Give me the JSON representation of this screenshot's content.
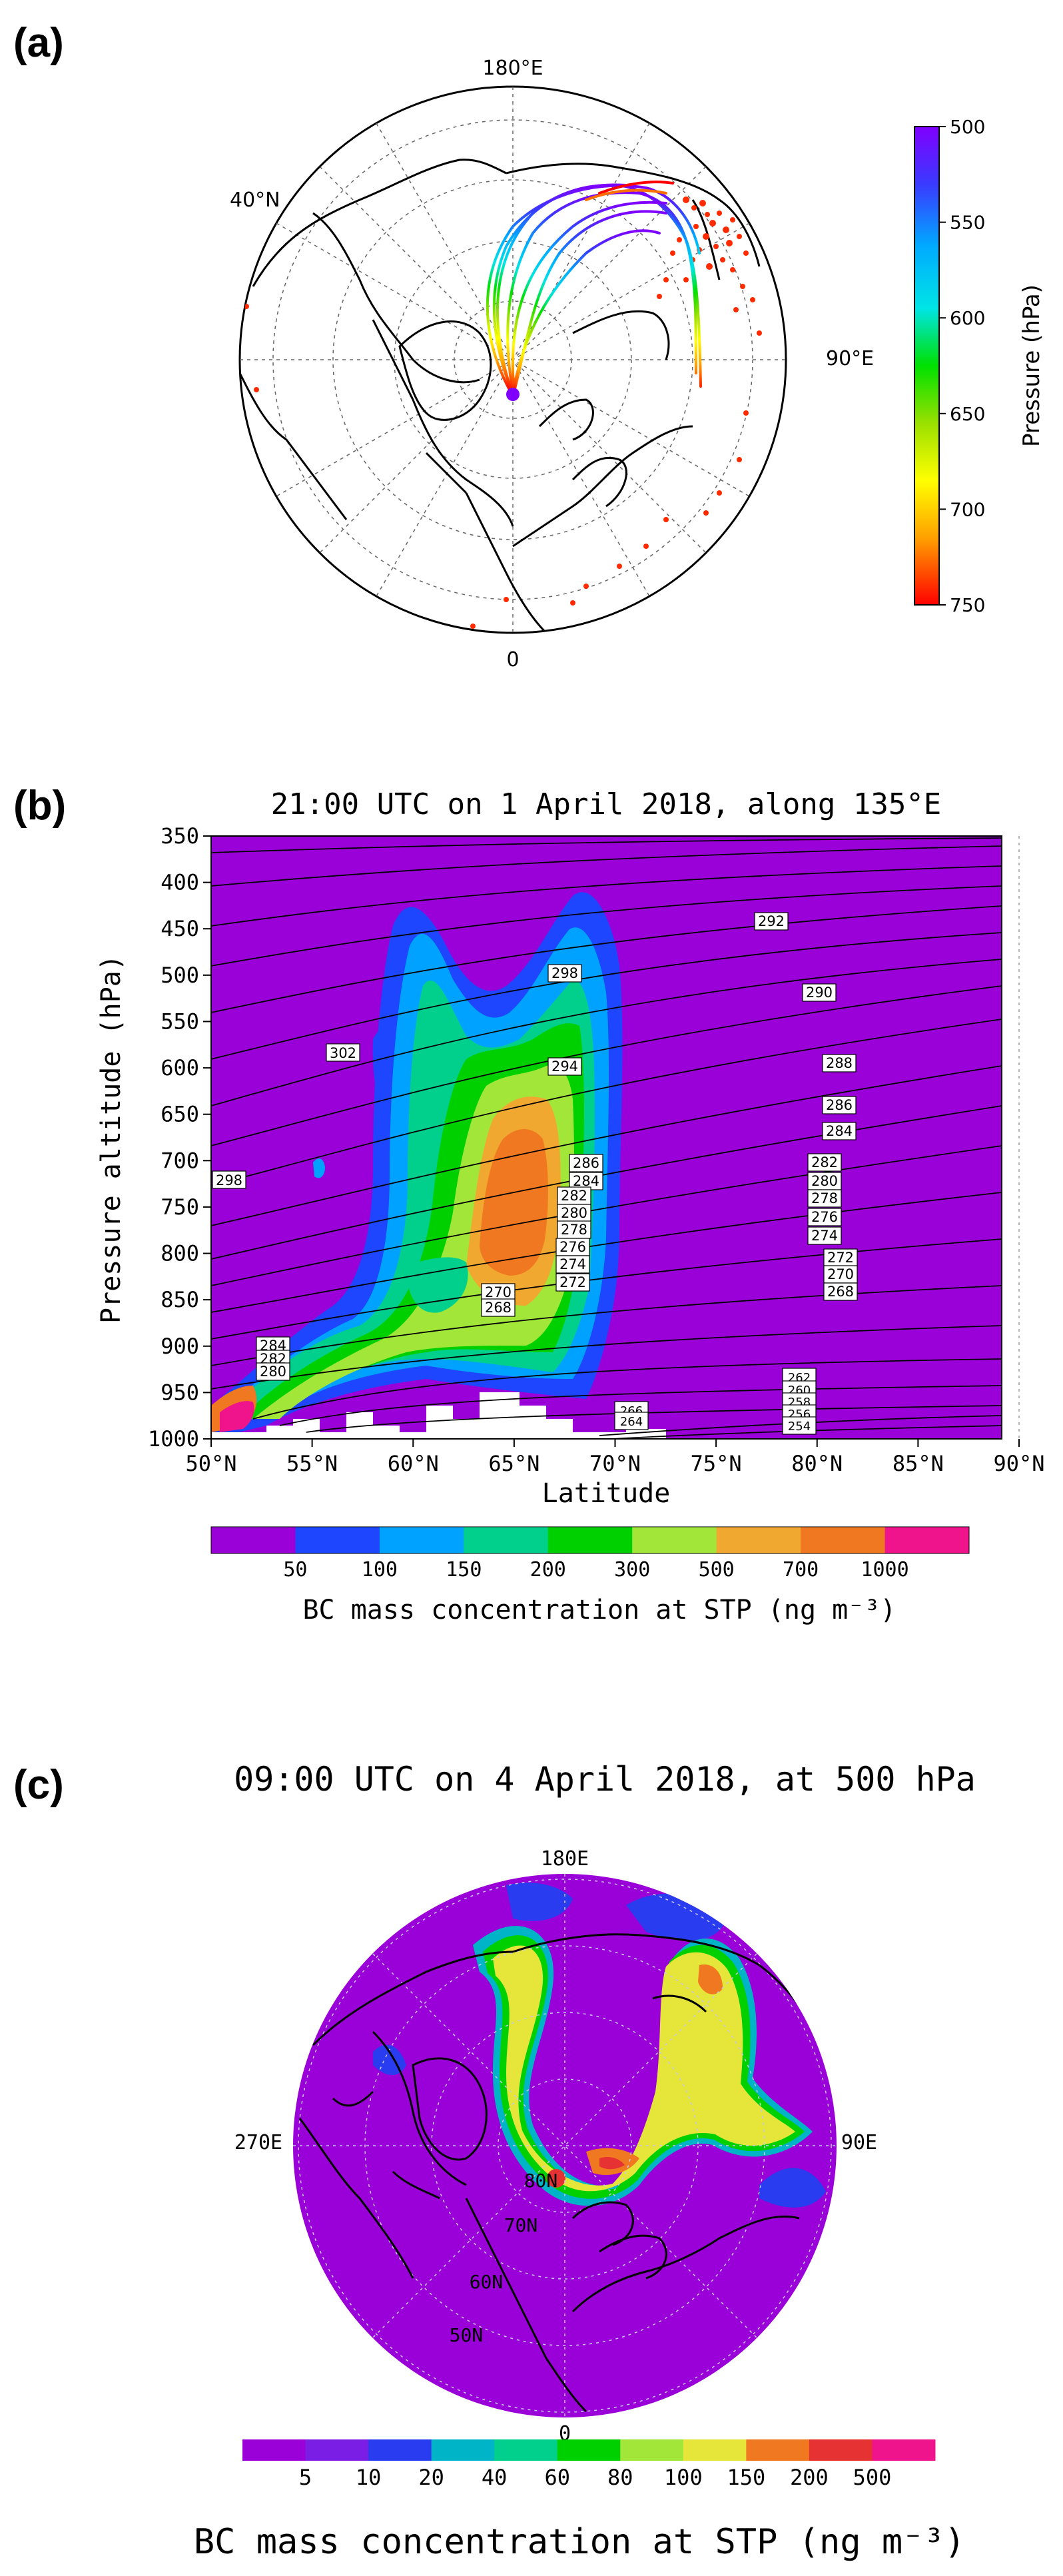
{
  "panel_a": {
    "letter": "(a)",
    "labels": {
      "top": "180°E",
      "left": "40°N",
      "right": "90°E",
      "bottom": "0"
    },
    "colorbar": {
      "title": "Pressure (hPa)",
      "ticks": [
        "500",
        "550",
        "600",
        "650",
        "700",
        "750"
      ],
      "tick_values": [
        500,
        550,
        600,
        650,
        700,
        750
      ],
      "range": [
        500,
        750
      ],
      "colors": [
        "#8000ff",
        "#3a3aff",
        "#00aaff",
        "#00e5e5",
        "#00e000",
        "#9ae000",
        "#ffff00",
        "#ffa000",
        "#ff0000"
      ]
    },
    "trajectory_color_end": "#ff0000",
    "fire_color": "#ff2a00"
  },
  "panel_b": {
    "letter": "(b)",
    "title": "21:00 UTC on 1 April 2018, along 135°E",
    "xlabel": "Latitude",
    "ylabel": "Pressure altitude (hPa)",
    "xticks": [
      "50°N",
      "55°N",
      "60°N",
      "65°N",
      "70°N",
      "75°N",
      "80°N",
      "85°N",
      "90°N"
    ],
    "yticks": [
      "350",
      "400",
      "450",
      "500",
      "550",
      "600",
      "650",
      "700",
      "750",
      "800",
      "850",
      "900",
      "950",
      "1000"
    ],
    "colorbar": {
      "title": "BC mass concentration at STP (ng m⁻³)",
      "ticks": [
        "50",
        "100",
        "150",
        "200",
        "300",
        "500",
        "700",
        "1000"
      ],
      "colors": [
        "#9a00d8",
        "#1e46ff",
        "#00a2ff",
        "#00d08c",
        "#00d000",
        "#a2e63a",
        "#f0a830",
        "#f07820",
        "#f0148c"
      ]
    },
    "contour_labels": {
      "left_upper": [
        "302",
        "298"
      ],
      "middle": [
        "298",
        "294",
        "286",
        "284",
        "282",
        "280",
        "278",
        "276",
        "274",
        "272",
        "270",
        "268"
      ],
      "right": [
        "292",
        "290",
        "288",
        "286",
        "284",
        "282",
        "280",
        "278",
        "276",
        "274",
        "272",
        "270",
        "268"
      ],
      "lower_left": [
        "284",
        "282",
        "280"
      ],
      "bottom_right": [
        "262",
        "260",
        "258",
        "256",
        "254",
        "266",
        "264"
      ]
    }
  },
  "panel_c": {
    "letter": "(c)",
    "title": "09:00 UTC on 4 April 2018, at 500 hPa",
    "labels": {
      "top": "180E",
      "left": "270E",
      "right": "90E",
      "bottom": "0"
    },
    "lat_labels": [
      "80N",
      "70N",
      "60N",
      "50N"
    ],
    "colorbar": {
      "title": "BC mass concentration at STP (ng m⁻³)",
      "ticks": [
        "5",
        "10",
        "20",
        "40",
        "60",
        "80",
        "100",
        "150",
        "200",
        "500"
      ],
      "colors": [
        "#9a00d8",
        "#7a1ee6",
        "#2a3cf0",
        "#00b4c8",
        "#00d08c",
        "#00d000",
        "#a2e63a",
        "#e6e63a",
        "#f07820",
        "#e63232",
        "#f0148c"
      ]
    }
  }
}
